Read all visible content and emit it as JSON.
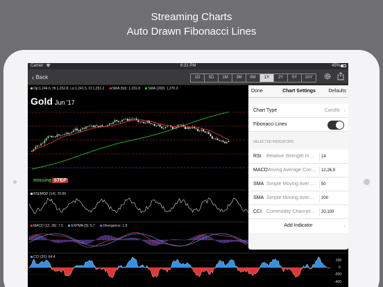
{
  "banner": {
    "line1": "Streaming Charts",
    "line2": "Auto Drawn Fibonacci Lines"
  },
  "statusbar": {
    "carrier": "Carrier",
    "wifi": "wifi-icon",
    "time": "6:31 PM",
    "battery": "45%"
  },
  "navbar": {
    "back_label": "Back",
    "ranges": [
      "1D",
      "5D",
      "1M",
      "3M",
      "6M",
      "1Y",
      "2Y",
      "5Y",
      "10Y"
    ],
    "selected_range": "1Y",
    "icons": [
      "gear-icon",
      "share-icon"
    ]
  },
  "chart": {
    "asset": "Gold",
    "expiry": "Jun '17",
    "ohlc": "Op:1,244.6, Hi:1,252.8, Lo:1,241.5, Cl:1,251.2",
    "sma50": "SMA (50): 1,231.8",
    "sma200": "SMA (200): 1,270.3",
    "rsi_label": "RSI/MOD (14): 70.99",
    "macd_label": "MACD (12, 26): 7.5",
    "expma_label": "EXPMA (9): 5.7",
    "divergence_label": "Divergence: 1.8",
    "cci_label": "CCI (20): 64.4",
    "cci_ticks": [
      "200",
      "0",
      "-200",
      "-400"
    ],
    "watermark_a": "missing",
    "watermark_b": "STEP",
    "colors": {
      "up_candle": "#7ed17e",
      "down_candle": "#e8e8e8",
      "sma50": "#e23c3c",
      "sma200": "#2dbd2d",
      "fib_dashed": "#d03030",
      "fib_purple": "#8a5ad8",
      "cci_positive": "#3aa0ff",
      "cci_negative": "#ff3a3a"
    }
  },
  "settings": {
    "done_label": "Done",
    "title": "Chart Settings",
    "defaults_label": "Defaults",
    "chart_type_label": "Chart Type",
    "chart_type_value": "Candle",
    "fibonacci_label": "Fibonacci Lines",
    "fibonacci_on": true,
    "selected_section": "SELECTED INDICATORS",
    "indicators": [
      {
        "code": "RSI",
        "name": "Relative Strength Index",
        "params": "14"
      },
      {
        "code": "MACD",
        "name": "Moving Average Convergence Divergence",
        "params": "12,26,9"
      },
      {
        "code": "SMA",
        "name": "Simple Moving Average",
        "params": "50"
      },
      {
        "code": "SMA",
        "name": "Simple Moving Average",
        "params": "200"
      },
      {
        "code": "CCI",
        "name": "Commodity Channel Index",
        "params": "20,100"
      }
    ],
    "add_indicator_label": "Add Indicator"
  }
}
